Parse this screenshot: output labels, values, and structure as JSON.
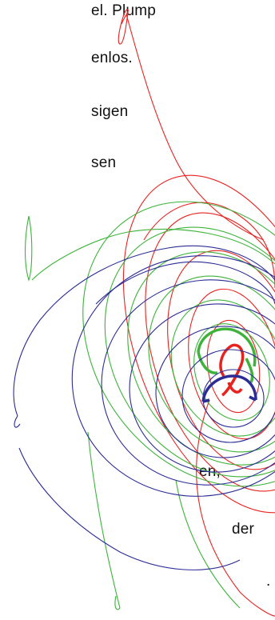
{
  "text_lines": [
    "el. Plump",
    "enlos.",
    "sigen",
    "sen",
    "en,",
    "der",
    "."
  ],
  "colors": {
    "text": "#111111",
    "red": "#e8231f",
    "green": "#3db33a",
    "blue": "#2c2c96",
    "background": "#ffffff"
  }
}
